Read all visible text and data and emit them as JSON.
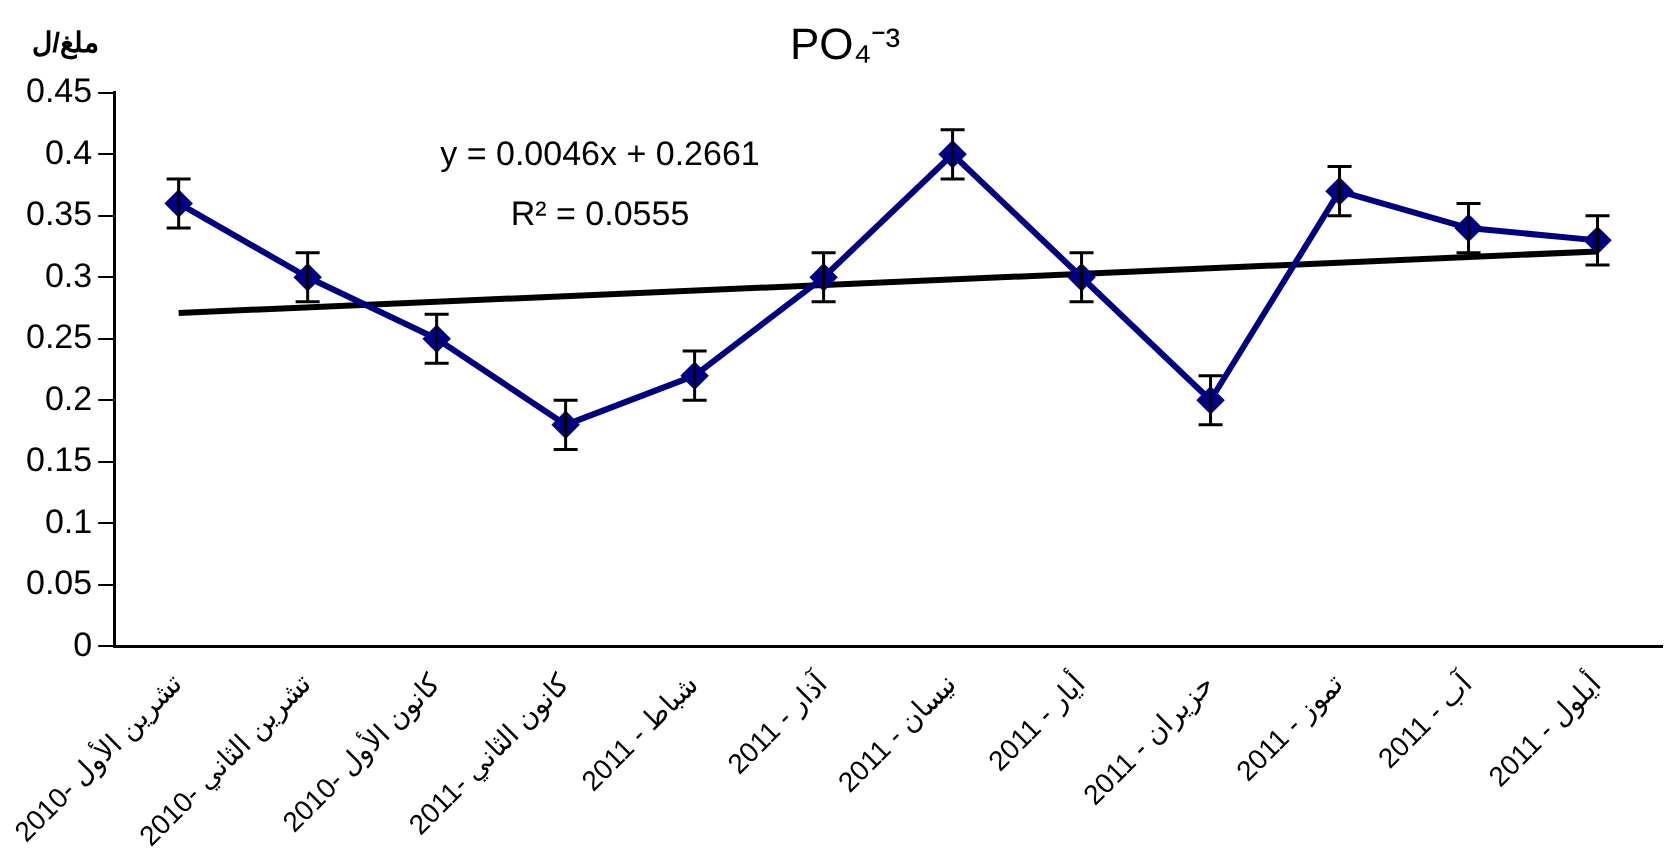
{
  "chart_data": {
    "type": "line",
    "title": "PO₄⁻³",
    "ylabel": "ملغ/ل",
    "categories": [
      "تشرين الأول -2010",
      "تشرين الثاني -2010",
      "كانون الأول -2010",
      "كانون الثاني -2011",
      "شباط - 2011",
      "آذار - 2011",
      "نيسان - 2011",
      "أيار - 2011",
      "حزيران - 2011",
      "تموز - 2011",
      "آب - 2011",
      "أيلول - 2011"
    ],
    "series": [
      {
        "type": "line",
        "color": "#000080",
        "marker": "diamond",
        "values": [
          0.36,
          0.3,
          0.25,
          0.18,
          0.22,
          0.3,
          0.4,
          0.3,
          0.2,
          0.37,
          0.34,
          0.33
        ],
        "errors": [
          0.02,
          0.02,
          0.02,
          0.02,
          0.02,
          0.02,
          0.02,
          0.02,
          0.02,
          0.02,
          0.02,
          0.02
        ]
      },
      {
        "type": "line",
        "color": "#000000",
        "marker": "none",
        "values": [
          0.271,
          null,
          null,
          null,
          null,
          null,
          null,
          null,
          null,
          null,
          null,
          0.321
        ]
      }
    ],
    "ylim": [
      0,
      0.45
    ],
    "yticks": [
      0,
      0.05,
      0.1,
      0.15,
      0.2,
      0.25,
      0.3,
      0.35,
      0.4,
      0.45
    ],
    "annotations": [
      "y = 0.0046x + 0.2661",
      "R² = 0.0555"
    ],
    "grid": false,
    "legend": false
  }
}
